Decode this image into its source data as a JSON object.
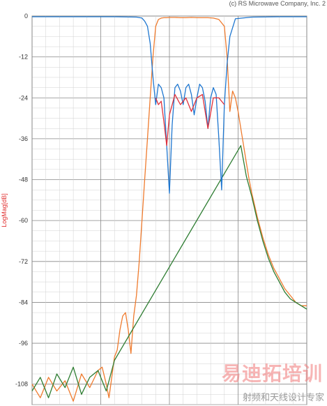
{
  "header": {
    "copyright": "(c) RS Microwave Company, Inc. 2"
  },
  "watermark": {
    "main": "易迪拓培训",
    "sub": "射频和天线设计专家"
  },
  "chart_data": {
    "type": "line",
    "title": "",
    "xlabel": "",
    "ylabel": "LogMag[dB]",
    "ylim": [
      -114,
      0
    ],
    "yticks": [
      0,
      -12,
      -24,
      -36,
      -48,
      -60,
      -72,
      -84,
      -96,
      -108
    ],
    "xlim": [
      0,
      10
    ],
    "grid": true,
    "colors": {
      "s21": "#ef7b2e",
      "s21_alt": "#2e7d32",
      "s11": "#1f77d0",
      "s22": "#e0303a",
      "ylabel": "#e03030",
      "grid": "#d0d0d0",
      "major_grid": "#888888"
    },
    "series": [
      {
        "key": "s21",
        "x": [
          0,
          0.3,
          0.6,
          0.9,
          1.2,
          1.5,
          1.8,
          2.1,
          2.4,
          2.55,
          2.7,
          2.8,
          2.9,
          3.0,
          3.1,
          3.2,
          3.3,
          3.4,
          3.5,
          3.6,
          3.7,
          3.8,
          3.9,
          4.0,
          4.1,
          4.2,
          4.3,
          4.4,
          4.5,
          4.6,
          4.7,
          4.8,
          4.9,
          5.0,
          5.2,
          5.4,
          5.6,
          5.8,
          6.0,
          6.2,
          6.4,
          6.6,
          6.8,
          7.0,
          7.1,
          7.2,
          7.3,
          7.4,
          7.5,
          7.6,
          7.7,
          7.8,
          7.9,
          8.0,
          8.2,
          8.4,
          8.6,
          8.8,
          9.0,
          9.2,
          9.4,
          9.6,
          9.8,
          10.0
        ],
        "y": [
          -108,
          -112,
          -106,
          -110,
          -107,
          -113,
          -105,
          -109,
          -104,
          -103,
          -108,
          -112,
          -106,
          -100,
          -98,
          -92,
          -88,
          -87,
          -92,
          -99,
          -88,
          -82,
          -72,
          -60,
          -48,
          -36,
          -24,
          -12,
          -3,
          -1,
          -0.6,
          -0.5,
          -0.5,
          -0.4,
          -0.4,
          -0.5,
          -0.5,
          -0.4,
          -0.5,
          -0.5,
          -0.5,
          -0.6,
          -1,
          -3,
          -12,
          -28,
          -22,
          -24,
          -28,
          -33,
          -38,
          -43,
          -48,
          -52,
          -59,
          -65,
          -70,
          -74,
          -77,
          -80,
          -82,
          -84,
          -85,
          -85
        ]
      },
      {
        "key": "s21_alt",
        "x": [
          0,
          0.3,
          0.6,
          0.9,
          1.2,
          1.5,
          1.8,
          2.1,
          2.4,
          2.7,
          3.0,
          7.6,
          7.8,
          8.0,
          8.2,
          8.4,
          8.6,
          8.8,
          9.0,
          9.2,
          9.4,
          9.6,
          9.8,
          10.0
        ],
        "y": [
          -110,
          -106,
          -112,
          -105,
          -109,
          -103,
          -111,
          -106,
          -104,
          -110,
          -101,
          -38,
          -47,
          -53,
          -60,
          -66,
          -71,
          -75,
          -78,
          -81,
          -83,
          -84,
          -85,
          -86
        ]
      },
      {
        "key": "s11",
        "x": [
          0,
          1,
          2,
          3,
          3.8,
          4.0,
          4.1,
          4.2,
          4.3,
          4.4,
          4.5,
          4.6,
          4.7,
          4.8,
          4.9,
          5.0,
          5.1,
          5.2,
          5.3,
          5.4,
          5.5,
          5.6,
          5.7,
          5.8,
          5.9,
          6.0,
          6.1,
          6.2,
          6.3,
          6.4,
          6.5,
          6.6,
          6.7,
          6.8,
          6.9,
          7.0,
          7.1,
          7.2,
          7.4,
          8,
          9,
          10
        ],
        "y": [
          -0.2,
          -0.2,
          -0.2,
          -0.2,
          -0.3,
          -0.6,
          -1.5,
          -3,
          -8,
          -18,
          -26,
          -20,
          -21,
          -24,
          -38,
          -52,
          -32,
          -21,
          -20,
          -22,
          -26,
          -21,
          -20,
          -23,
          -29,
          -24,
          -20,
          -21,
          -25,
          -33,
          -24,
          -21,
          -23,
          -36,
          -51,
          -26,
          -14,
          -6,
          -0.8,
          -0.3,
          -0.2,
          -0.2
        ]
      },
      {
        "key": "s22",
        "x": [
          4.5,
          4.6,
          4.7,
          4.8,
          4.9,
          5.0,
          5.2,
          5.4,
          5.6,
          5.8,
          6.0,
          6.2,
          6.4,
          6.6,
          6.8,
          7.0
        ],
        "y": [
          -24,
          -26,
          -25,
          -31,
          -38,
          -29,
          -23,
          -26,
          -24,
          -28,
          -24,
          -23,
          -33,
          -24,
          -24,
          -26
        ]
      }
    ]
  }
}
